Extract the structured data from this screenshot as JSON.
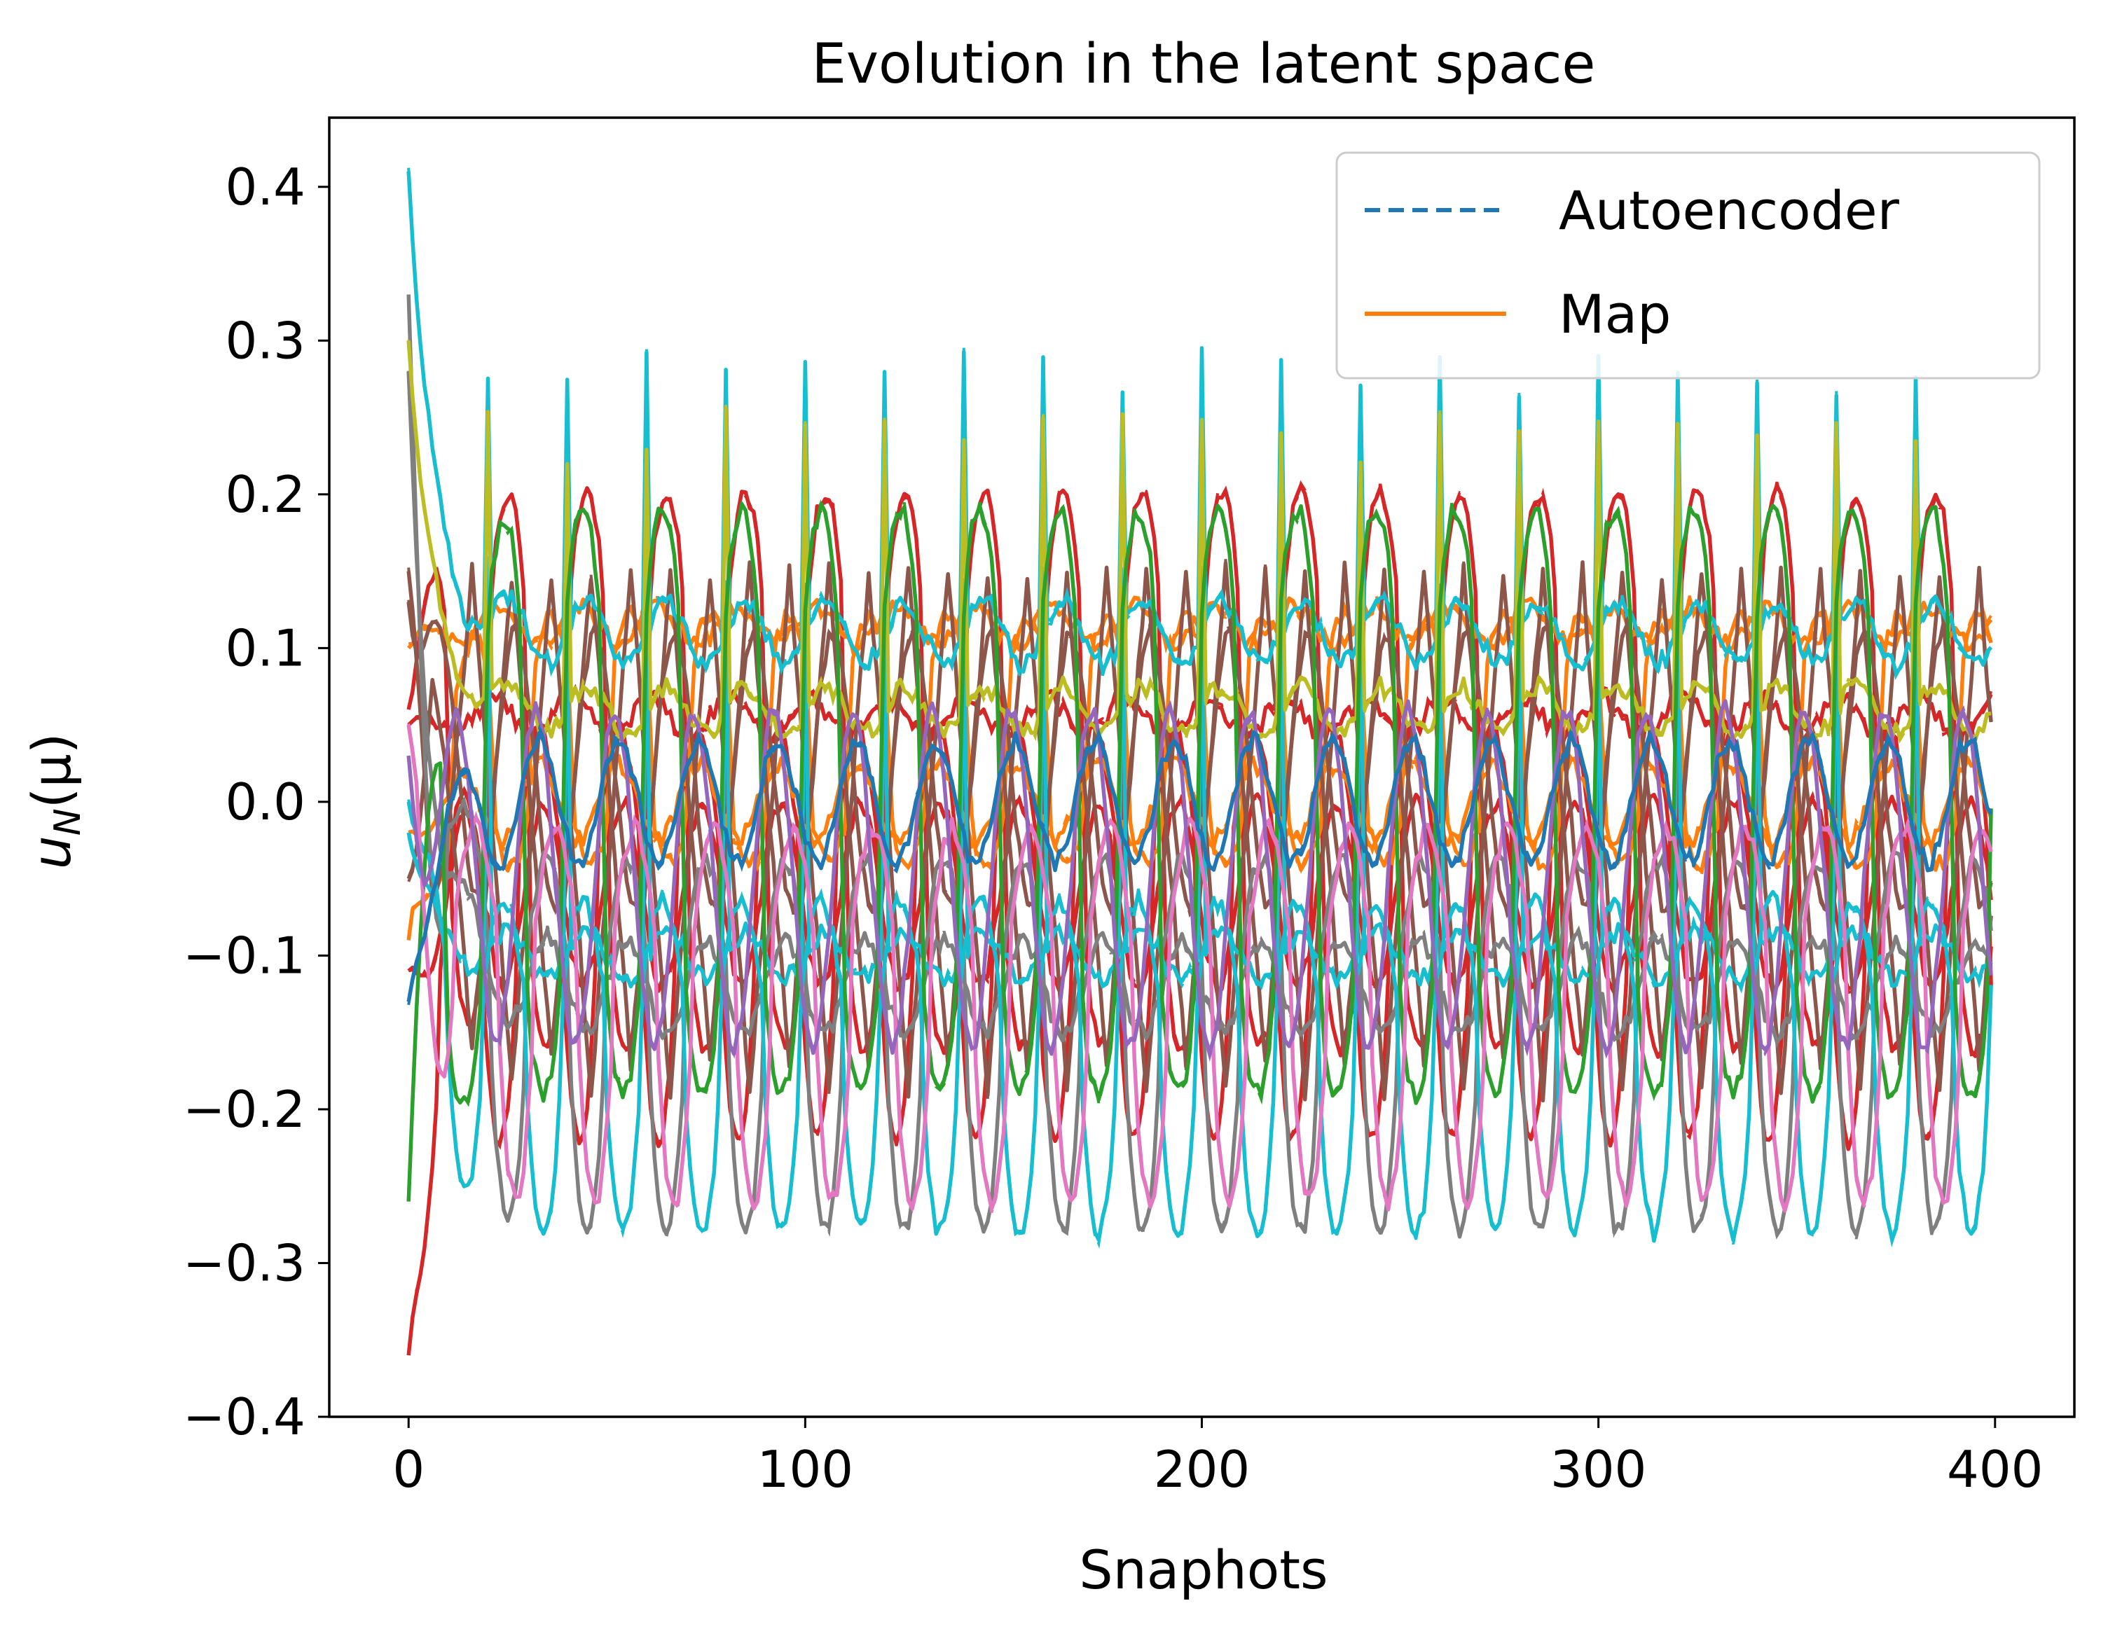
{
  "chart_data": {
    "type": "line",
    "title": "Evolution in the latent space",
    "xlabel": "Snaphots",
    "ylabel_main": "u",
    "ylabel_sub": "N",
    "ylabel_rest": "(μ)",
    "xlim": [
      -20,
      420
    ],
    "ylim": [
      -0.4,
      0.445
    ],
    "x_ticks": [
      0,
      100,
      200,
      300,
      400
    ],
    "x_tick_labels": [
      "0",
      "100",
      "200",
      "300",
      "400"
    ],
    "y_ticks": [
      0.4,
      0.3,
      0.2,
      0.1,
      0.0,
      -0.1,
      -0.2,
      -0.3,
      -0.4
    ],
    "y_tick_labels": [
      "0.4",
      "0.3",
      "0.2",
      "0.1",
      "0.0",
      "−0.1",
      "−0.2",
      "−0.3",
      "−0.4"
    ],
    "grid": false,
    "legend": {
      "position": "top-right",
      "entries": [
        {
          "label": "Autoencoder",
          "style": "dashed",
          "color": "#1f77b4"
        },
        {
          "label": "Map",
          "style": "solid",
          "color": "#ff7f0e"
        }
      ]
    },
    "n_snapshots": 400,
    "period": 20,
    "series": [
      {
        "color": "#d62728",
        "start": 0.06,
        "shape": "plateau",
        "center": 0.02,
        "amp": 0.18,
        "phase": 0.0,
        "spike": 0.0
      },
      {
        "color": "#d62728",
        "start": -0.36,
        "shape": "valley",
        "center": -0.02,
        "amp": 0.2,
        "phase": 0.35,
        "spike": 0.0
      },
      {
        "color": "#d62728",
        "start": -0.11,
        "shape": "sine",
        "center": -0.06,
        "amp": 0.06,
        "phase": 0.55,
        "spike": 0.0
      },
      {
        "color": "#d62728",
        "start": 0.05,
        "shape": "sine",
        "center": 0.055,
        "amp": 0.012,
        "phase": 0.2,
        "spike": 0.0
      },
      {
        "color": "#ff7f0e",
        "start": 0.1,
        "shape": "sine",
        "center": 0.115,
        "amp": 0.012,
        "phase": 0.1,
        "spike": 0.0
      },
      {
        "color": "#ff7f0e",
        "start": -0.02,
        "shape": "sine",
        "center": 0.0,
        "amp": 0.025,
        "phase": 0.6,
        "spike": 0.0
      },
      {
        "color": "#ff7f0e",
        "start": -0.09,
        "shape": "plateau",
        "center": 0.04,
        "amp": 0.08,
        "phase": 0.45,
        "spike": 0.0
      },
      {
        "color": "#8c564b",
        "start": 0.15,
        "shape": "tri",
        "center": -0.02,
        "amp": 0.17,
        "phase": 0.7,
        "spike": 0.0
      },
      {
        "color": "#8c564b",
        "start": -0.05,
        "shape": "tri",
        "center": -0.01,
        "amp": 0.16,
        "phase": 0.2,
        "spike": 0.0
      },
      {
        "color": "#8c564b",
        "start": 0.13,
        "shape": "sine",
        "center": 0.02,
        "amp": 0.09,
        "phase": 0.9,
        "spike": 0.0
      },
      {
        "color": "#7f7f7f",
        "start": 0.33,
        "shape": "valley",
        "center": -0.1,
        "amp": 0.18,
        "phase": 0.25,
        "spike": 0.0
      },
      {
        "color": "#7f7f7f",
        "start": 0.28,
        "shape": "sine",
        "center": -0.12,
        "amp": 0.03,
        "phase": 0.5,
        "spike": 0.0
      },
      {
        "color": "#17becf",
        "start": 0.41,
        "shape": "spiky",
        "center": 0.11,
        "amp": 0.04,
        "phase": 0.0,
        "spike": 0.17
      },
      {
        "color": "#17becf",
        "start": 0.0,
        "shape": "valley",
        "center": -0.12,
        "amp": 0.16,
        "phase": 0.8,
        "spike": 0.0
      },
      {
        "color": "#17becf",
        "start": -0.02,
        "shape": "spiky",
        "center": -0.1,
        "amp": 0.03,
        "phase": 0.0,
        "spike": 0.25
      },
      {
        "color": "#bcbd22",
        "start": 0.3,
        "shape": "spiky",
        "center": 0.06,
        "amp": 0.03,
        "phase": 0.0,
        "spike": 0.18
      },
      {
        "color": "#2ca02c",
        "start": -0.26,
        "shape": "plateau",
        "center": 0.0,
        "amp": 0.19,
        "phase": 0.05,
        "spike": 0.0
      },
      {
        "color": "#e377c2",
        "start": 0.05,
        "shape": "valley",
        "center": -0.08,
        "amp": 0.18,
        "phase": 0.15,
        "spike": 0.0
      },
      {
        "color": "#9467bd",
        "start": 0.03,
        "shape": "sine",
        "center": -0.05,
        "amp": 0.11,
        "phase": 0.65,
        "spike": 0.0
      },
      {
        "color": "#1f77b4",
        "start": -0.13,
        "shape": "sine",
        "center": 0.0,
        "amp": 0.04,
        "phase": 0.6,
        "spike": 0.0
      }
    ]
  }
}
